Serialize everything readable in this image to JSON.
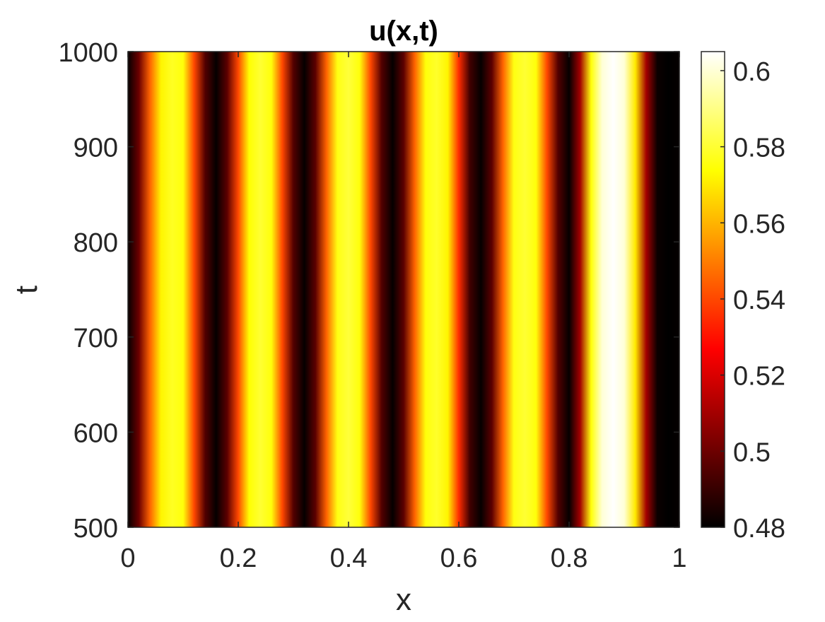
{
  "chart_data": {
    "type": "heatmap",
    "title": "u(x,t)",
    "xlabel": "x",
    "ylabel": "t",
    "xlim": [
      0,
      1
    ],
    "ylim": [
      500,
      1000
    ],
    "x_ticks": [
      0,
      0.2,
      0.4,
      0.6,
      0.8,
      1
    ],
    "x_tick_labels": [
      "0",
      "0.2",
      "0.4",
      "0.6",
      "0.8",
      "1"
    ],
    "y_ticks": [
      500,
      600,
      700,
      800,
      900,
      1000
    ],
    "y_tick_labels": [
      "500",
      "600",
      "700",
      "800",
      "900",
      "1000"
    ],
    "colormap": "hot",
    "colorbar": {
      "range": [
        0.48,
        0.605
      ],
      "ticks": [
        0.48,
        0.5,
        0.52,
        0.54,
        0.56,
        0.58,
        0.6
      ],
      "tick_labels": [
        "0.48",
        "0.5",
        "0.52",
        "0.54",
        "0.56",
        "0.58",
        "0.6"
      ]
    },
    "profile_x": [
      0.0,
      0.02,
      0.04,
      0.06,
      0.08,
      0.1,
      0.12,
      0.14,
      0.16,
      0.18,
      0.2,
      0.22,
      0.24,
      0.26,
      0.28,
      0.3,
      0.32,
      0.34,
      0.36,
      0.38,
      0.4,
      0.42,
      0.44,
      0.46,
      0.48,
      0.5,
      0.52,
      0.54,
      0.56,
      0.58,
      0.6,
      0.62,
      0.64,
      0.66,
      0.68,
      0.7,
      0.72,
      0.74,
      0.76,
      0.78,
      0.8,
      0.82,
      0.84,
      0.86,
      0.88,
      0.9,
      0.92,
      0.94,
      0.96,
      0.98,
      1.0
    ],
    "profile_u": [
      0.481,
      0.5,
      0.545,
      0.572,
      0.578,
      0.575,
      0.54,
      0.495,
      0.481,
      0.497,
      0.54,
      0.574,
      0.58,
      0.575,
      0.54,
      0.495,
      0.481,
      0.497,
      0.545,
      0.576,
      0.581,
      0.575,
      0.54,
      0.495,
      0.481,
      0.497,
      0.545,
      0.575,
      0.579,
      0.572,
      0.535,
      0.492,
      0.481,
      0.497,
      0.545,
      0.576,
      0.58,
      0.575,
      0.54,
      0.495,
      0.481,
      0.51,
      0.575,
      0.6,
      0.605,
      0.6,
      0.57,
      0.51,
      0.482,
      0.48,
      0.481
    ]
  }
}
